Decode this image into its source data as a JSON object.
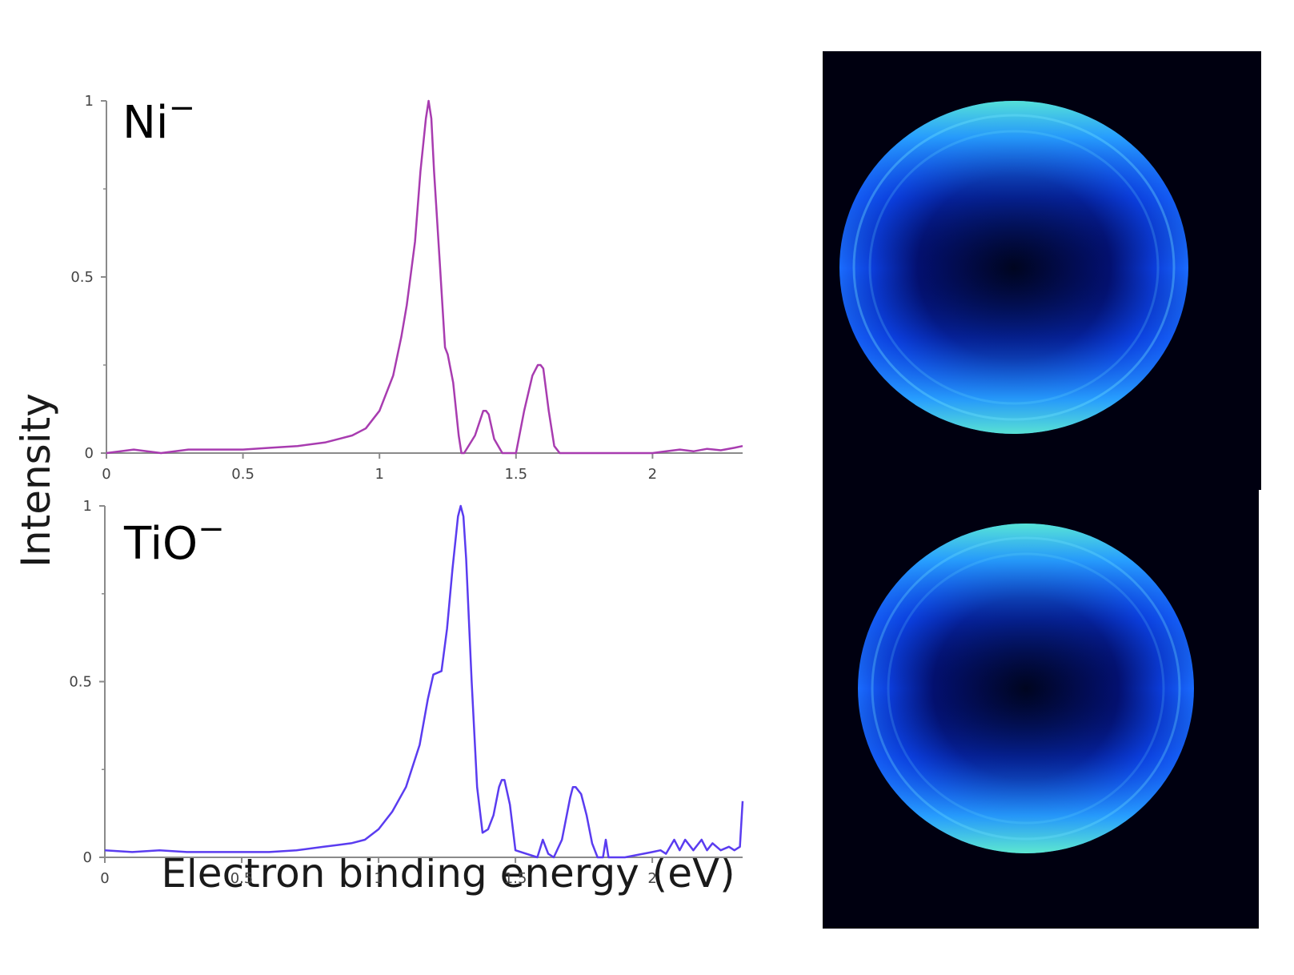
{
  "figure": {
    "ylabel": "Intensity",
    "xlabel": "Electron binding energy (eV)",
    "image_colors": {
      "background": "#000010",
      "ring_bright": "#55ffcc",
      "ring_mid": "#2aa0ff",
      "disk": "#0830d0"
    }
  },
  "chart_data": [
    {
      "type": "line",
      "label": "Ni",
      "label_superscript": "−",
      "color": "#a83cb0",
      "xlabel": "Electron binding energy (eV)",
      "ylabel": "Intensity",
      "xlim": [
        0,
        2.33
      ],
      "ylim": [
        0,
        1
      ],
      "x_ticks": [
        "0",
        "0.5",
        "1",
        "1.5",
        "2"
      ],
      "x_tick_values": [
        0,
        0.5,
        1,
        1.5,
        2
      ],
      "y_ticks": [
        "0",
        "0.5",
        "1"
      ],
      "y_tick_values": [
        0,
        0.5,
        1
      ],
      "grid": false,
      "series": [
        {
          "x": [
            0,
            0.1,
            0.2,
            0.3,
            0.4,
            0.5,
            0.6,
            0.7,
            0.8,
            0.85,
            0.9,
            0.95,
            1.0,
            1.05,
            1.08,
            1.1,
            1.13,
            1.15,
            1.17,
            1.18,
            1.19,
            1.2,
            1.22,
            1.24,
            1.25,
            1.27,
            1.29,
            1.3,
            1.31,
            1.35,
            1.38,
            1.39,
            1.4,
            1.42,
            1.45,
            1.5,
            1.53,
            1.56,
            1.58,
            1.59,
            1.6,
            1.62,
            1.64,
            1.66,
            1.7,
            1.8,
            1.9,
            2.0,
            2.05,
            2.1,
            2.15,
            2.2,
            2.25,
            2.3,
            2.33
          ],
          "y": [
            0.0,
            0.01,
            0.0,
            0.01,
            0.01,
            0.01,
            0.015,
            0.02,
            0.03,
            0.04,
            0.05,
            0.07,
            0.12,
            0.22,
            0.33,
            0.42,
            0.6,
            0.8,
            0.95,
            1.0,
            0.95,
            0.8,
            0.55,
            0.3,
            0.28,
            0.2,
            0.05,
            0.0,
            0.0,
            0.05,
            0.12,
            0.12,
            0.11,
            0.04,
            0.0,
            0.0,
            0.12,
            0.22,
            0.25,
            0.25,
            0.24,
            0.12,
            0.02,
            0.0,
            0.0,
            0.0,
            0.0,
            0.0,
            0.005,
            0.01,
            0.005,
            0.012,
            0.008,
            0.015,
            0.02
          ]
        }
      ]
    },
    {
      "type": "line",
      "label": "TiO",
      "label_superscript": "−",
      "color": "#5a3cf0",
      "xlabel": "Electron binding energy (eV)",
      "ylabel": "Intensity",
      "xlim": [
        0,
        2.33
      ],
      "ylim": [
        0,
        1
      ],
      "x_ticks": [
        "0",
        "0.5",
        "1",
        "1.5",
        "2"
      ],
      "x_tick_values": [
        0,
        0.5,
        1,
        1.5,
        2
      ],
      "y_ticks": [
        "0",
        "0.5",
        "1"
      ],
      "y_tick_values": [
        0,
        0.5,
        1
      ],
      "grid": false,
      "series": [
        {
          "x": [
            0,
            0.1,
            0.2,
            0.3,
            0.4,
            0.5,
            0.6,
            0.7,
            0.8,
            0.85,
            0.9,
            0.95,
            1.0,
            1.05,
            1.1,
            1.15,
            1.18,
            1.2,
            1.23,
            1.25,
            1.27,
            1.29,
            1.3,
            1.31,
            1.32,
            1.34,
            1.36,
            1.38,
            1.4,
            1.42,
            1.44,
            1.45,
            1.46,
            1.48,
            1.5,
            1.58,
            1.6,
            1.62,
            1.64,
            1.67,
            1.7,
            1.71,
            1.72,
            1.74,
            1.76,
            1.78,
            1.8,
            1.82,
            1.83,
            1.84,
            1.86,
            1.9,
            2.0,
            2.03,
            2.05,
            2.08,
            2.1,
            2.12,
            2.15,
            2.18,
            2.2,
            2.22,
            2.25,
            2.28,
            2.3,
            2.32,
            2.33
          ],
          "y": [
            0.02,
            0.015,
            0.02,
            0.015,
            0.015,
            0.015,
            0.015,
            0.02,
            0.03,
            0.035,
            0.04,
            0.05,
            0.08,
            0.13,
            0.2,
            0.32,
            0.45,
            0.52,
            0.53,
            0.65,
            0.82,
            0.97,
            1.0,
            0.97,
            0.85,
            0.5,
            0.2,
            0.07,
            0.08,
            0.12,
            0.2,
            0.22,
            0.22,
            0.15,
            0.02,
            0.0,
            0.05,
            0.01,
            0.0,
            0.05,
            0.17,
            0.2,
            0.2,
            0.18,
            0.12,
            0.04,
            0.0,
            0.0,
            0.05,
            0.0,
            0.0,
            0.0,
            0.015,
            0.02,
            0.01,
            0.05,
            0.02,
            0.05,
            0.02,
            0.05,
            0.02,
            0.04,
            0.02,
            0.03,
            0.02,
            0.03,
            0.16
          ]
        }
      ]
    }
  ]
}
